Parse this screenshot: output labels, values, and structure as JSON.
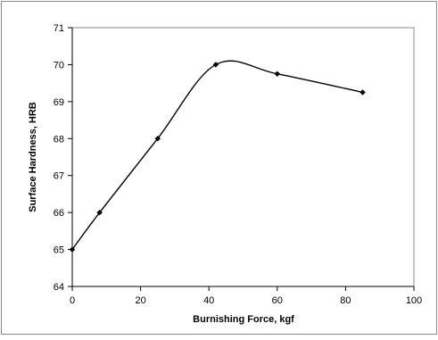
{
  "chart_data": {
    "type": "line",
    "title": "",
    "xlabel": "Burnishing Force, kgf",
    "ylabel": "Surface Hardness, HRB",
    "xlim": [
      0,
      100
    ],
    "ylim": [
      64,
      71
    ],
    "xticks": [
      "0",
      "20",
      "40",
      "60",
      "80",
      "100"
    ],
    "yticks": [
      "64",
      "65",
      "66",
      "67",
      "68",
      "69",
      "70",
      "71"
    ],
    "grid": false,
    "legend": "none",
    "series": [
      {
        "x": [
          0,
          8,
          25,
          42,
          60,
          85
        ],
        "values": [
          65.0,
          66.0,
          68.0,
          70.0,
          69.75,
          69.25
        ],
        "color": "#000000",
        "marker": "diamond",
        "smooth": true
      }
    ]
  }
}
